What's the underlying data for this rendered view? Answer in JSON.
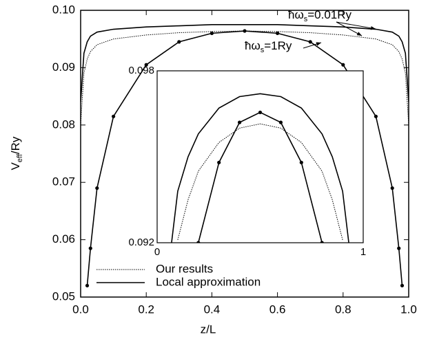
{
  "chart_data": [
    {
      "type": "line",
      "y_label": {
        "main": "V",
        "sub": "eff",
        "rest": "/Ry"
      },
      "x_label": "z/L",
      "annotations": [
        {
          "text": "ħω",
          "sub": "s",
          "rest": "=0.01Ry"
        },
        {
          "text": "ħω",
          "sub": "s",
          "rest": "=1Ry"
        }
      ],
      "x": [
        0,
        0.01,
        0.02,
        0.03,
        0.05,
        0.1,
        0.2,
        0.3,
        0.4,
        0.5,
        0.6,
        0.7,
        0.8,
        0.9,
        0.95,
        0.97,
        0.98,
        0.99,
        1
      ],
      "series": [
        {
          "name": "Local approximation",
          "color": "#000000",
          "style": "solid",
          "markers": false,
          "values": [
            0.084,
            0.0925,
            0.0945,
            0.0955,
            0.0962,
            0.0967,
            0.0971,
            0.0973,
            0.0975,
            0.0975,
            0.0975,
            0.0973,
            0.0971,
            0.0967,
            0.0962,
            0.0955,
            0.0945,
            0.0925,
            0.084
          ]
        },
        {
          "name": "Our results",
          "color": "#000000",
          "style": "dotted",
          "markers": false,
          "values": [
            0.08,
            0.089,
            0.0915,
            0.0928,
            0.094,
            0.095,
            0.0957,
            0.0961,
            0.0963,
            0.0964,
            0.0963,
            0.0961,
            0.0957,
            0.095,
            0.094,
            0.0928,
            0.0915,
            0.089,
            0.08
          ]
        },
        {
          "color": "#000000",
          "style": "solid",
          "markers": true,
          "values": [
            null,
            null,
            0.052,
            0.0585,
            0.069,
            0.0815,
            0.0905,
            0.0945,
            0.096,
            0.0964,
            0.096,
            0.0945,
            0.0905,
            0.0815,
            0.069,
            0.0585,
            0.052,
            null,
            null
          ]
        }
      ],
      "xlim": [
        0,
        1
      ],
      "xticks": [
        {
          "value": 0,
          "label": "0.0"
        },
        0.2,
        0.4,
        0.6,
        0.8,
        {
          "value": 1,
          "label": "1.0"
        }
      ],
      "ylim": [
        0.05,
        0.1
      ],
      "yticks": [
        0.05,
        0.06,
        0.07,
        0.08,
        0.09,
        {
          "value": 0.1,
          "label": "0.10"
        }
      ],
      "legend": "lower left"
    },
    {
      "type": "line",
      "x": [
        0.07,
        0.1,
        0.15,
        0.2,
        0.3,
        0.4,
        0.5,
        0.6,
        0.7,
        0.8,
        0.85,
        0.9,
        0.93
      ],
      "series": [
        {
          "color": "#000000",
          "style": "solid",
          "markers": false,
          "values": [
            0.092,
            0.0938,
            0.095,
            0.0958,
            0.0967,
            0.0971,
            0.0972,
            0.0971,
            0.0967,
            0.0958,
            0.095,
            0.0938,
            0.092
          ]
        },
        {
          "color": "#000000",
          "style": "dotted",
          "markers": false,
          "values": [
            null,
            0.0921,
            0.0935,
            0.0945,
            0.0955,
            0.096,
            0.09615,
            0.096,
            0.0955,
            0.0945,
            0.0935,
            0.0921,
            null
          ]
        },
        {
          "color": "#000000",
          "style": "solid",
          "markers": true,
          "values": [
            null,
            null,
            null,
            0.092,
            0.0948,
            0.0962,
            0.09655,
            0.0962,
            0.0948,
            0.092,
            null,
            null,
            null
          ]
        }
      ],
      "xlim": [
        0,
        1
      ],
      "xticks": [
        0,
        1
      ],
      "ylim": [
        0.092,
        0.098
      ],
      "yticks": [
        0.092,
        0.098
      ]
    }
  ]
}
